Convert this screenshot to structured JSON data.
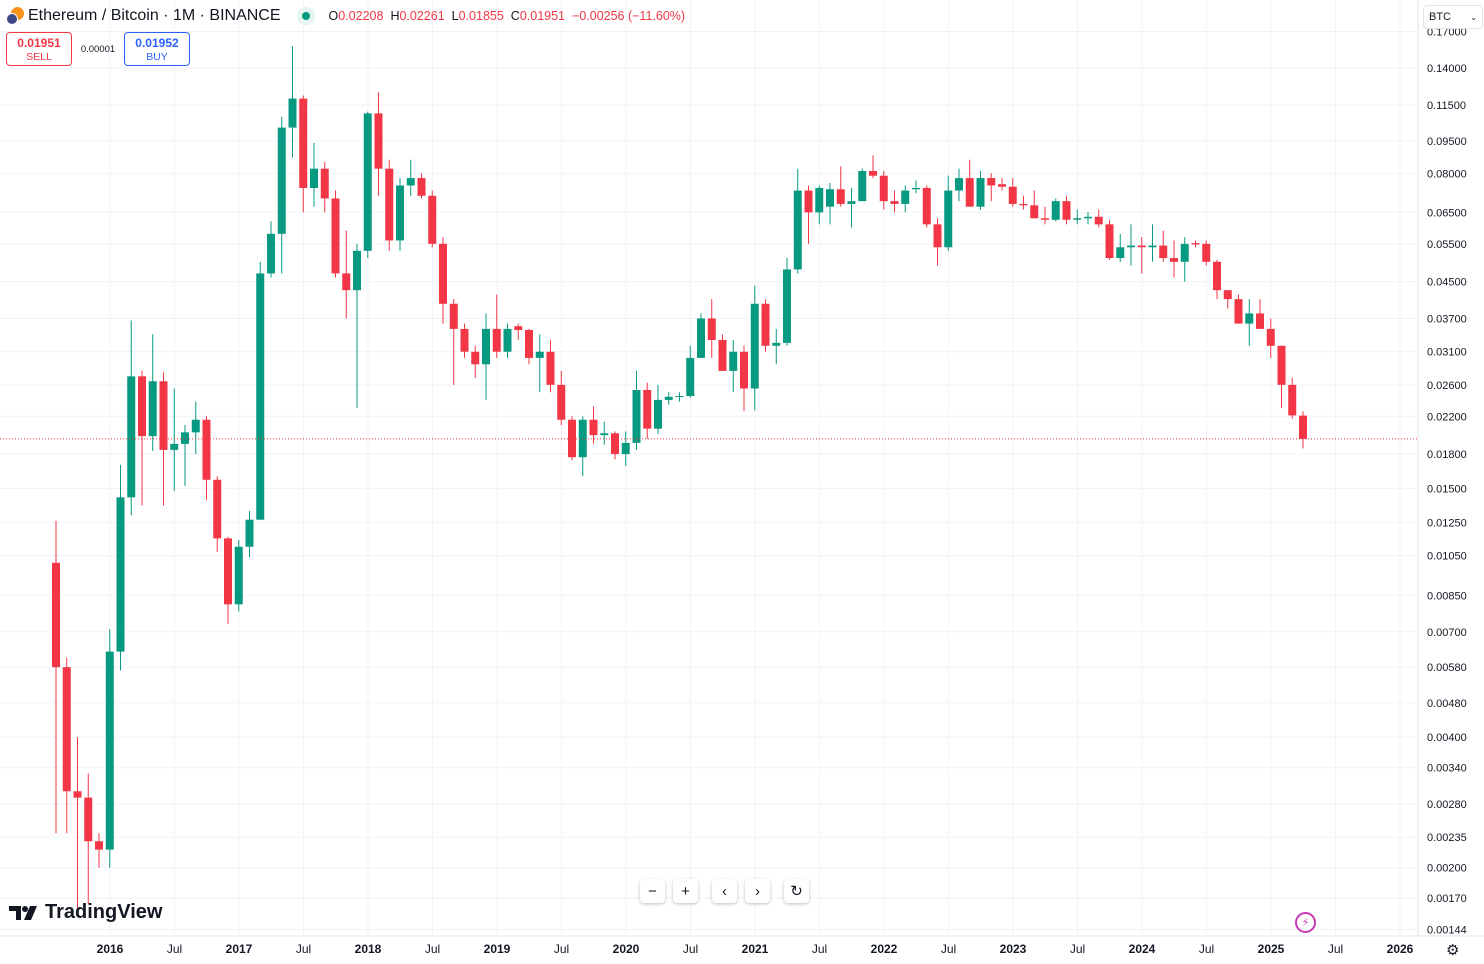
{
  "header": {
    "symbol": "Ethereum / Bitcoin · 1M · BINANCE",
    "o_label": "O",
    "o": "0.02208",
    "h_label": "H",
    "h": "0.02261",
    "l_label": "L",
    "l": "0.01855",
    "c_label": "C",
    "c": "0.01951",
    "change": "−0.00256 (−11.60%)"
  },
  "trade": {
    "sell_price": "0.01951",
    "sell_label": "SELL",
    "spread": "0.00001",
    "buy_price": "0.01952",
    "buy_label": "BUY"
  },
  "currency_select": {
    "value": "BTC"
  },
  "nav": {
    "zoom_out": "−",
    "zoom_in": "+",
    "scroll_left": "‹",
    "scroll_right": "›",
    "reset": "↻"
  },
  "branding": {
    "logo_text": "TradingView"
  },
  "colors": {
    "up": "#089981",
    "down": "#f23645",
    "grid": "#f0f3fa",
    "last_price_line": "#f23645"
  },
  "chart_data": {
    "type": "candlestick",
    "title": "Ethereum / Bitcoin · 1M · BINANCE",
    "scale": "log",
    "ylim": [
      0.00144,
      0.17
    ],
    "last_price": 0.01951,
    "y_ticks": [
      "0.17000",
      "0.14000",
      "0.11500",
      "0.09500",
      "0.08000",
      "0.06500",
      "0.05500",
      "0.04500",
      "0.03700",
      "0.03100",
      "0.02600",
      "0.02200",
      "0.01800",
      "0.01500",
      "0.01250",
      "0.01050",
      "0.00850",
      "0.00700",
      "0.00580",
      "0.00480",
      "0.00400",
      "0.00340",
      "0.00280",
      "0.00235",
      "0.00200",
      "0.00170",
      "0.00144"
    ],
    "x_ticks": [
      {
        "label": "2016",
        "major": true
      },
      {
        "label": "Jul"
      },
      {
        "label": "2017",
        "major": true
      },
      {
        "label": "Jul"
      },
      {
        "label": "2018",
        "major": true
      },
      {
        "label": "Jul"
      },
      {
        "label": "2019",
        "major": true
      },
      {
        "label": "Jul"
      },
      {
        "label": "2020",
        "major": true
      },
      {
        "label": "Jul"
      },
      {
        "label": "2021",
        "major": true
      },
      {
        "label": "Jul"
      },
      {
        "label": "2022",
        "major": true
      },
      {
        "label": "Jul"
      },
      {
        "label": "2023",
        "major": true
      },
      {
        "label": "Jul"
      },
      {
        "label": "2024",
        "major": true
      },
      {
        "label": "Jul"
      },
      {
        "label": "2025",
        "major": true
      },
      {
        "label": "Jul"
      },
      {
        "label": "2026",
        "major": true
      }
    ],
    "start": "2015-08",
    "ohlc": [
      [
        0.0101,
        0.0126,
        0.0024,
        0.0058
      ],
      [
        0.0058,
        0.0061,
        0.0024,
        0.003
      ],
      [
        0.003,
        0.004,
        0.0016,
        0.0029
      ],
      [
        0.0029,
        0.0033,
        0.00165,
        0.0023
      ],
      [
        0.0023,
        0.0024,
        0.002,
        0.0022
      ],
      [
        0.0022,
        0.0071,
        0.002,
        0.0063
      ],
      [
        0.0063,
        0.017,
        0.0057,
        0.0143
      ],
      [
        0.0143,
        0.0366,
        0.013,
        0.0272
      ],
      [
        0.0272,
        0.028,
        0.0137,
        0.0198
      ],
      [
        0.0198,
        0.034,
        0.0183,
        0.0265
      ],
      [
        0.0265,
        0.0278,
        0.0137,
        0.0184
      ],
      [
        0.0184,
        0.0255,
        0.0148,
        0.019
      ],
      [
        0.019,
        0.021,
        0.0152,
        0.0202
      ],
      [
        0.0202,
        0.0238,
        0.018,
        0.0216
      ],
      [
        0.0216,
        0.022,
        0.0141,
        0.0157
      ],
      [
        0.0157,
        0.016,
        0.0107,
        0.0115
      ],
      [
        0.0115,
        0.0116,
        0.0073,
        0.0081
      ],
      [
        0.0081,
        0.0114,
        0.0078,
        0.011
      ],
      [
        0.011,
        0.0133,
        0.0104,
        0.0127
      ],
      [
        0.0127,
        0.05,
        0.013,
        0.047
      ],
      [
        0.047,
        0.062,
        0.046,
        0.058
      ],
      [
        0.058,
        0.108,
        0.047,
        0.102
      ],
      [
        0.102,
        0.157,
        0.087,
        0.119
      ],
      [
        0.119,
        0.121,
        0.065,
        0.074
      ],
      [
        0.074,
        0.094,
        0.067,
        0.082
      ],
      [
        0.082,
        0.085,
        0.065,
        0.07
      ],
      [
        0.07,
        0.073,
        0.046,
        0.047
      ],
      [
        0.047,
        0.059,
        0.037,
        0.043
      ],
      [
        0.043,
        0.055,
        0.023,
        0.053
      ],
      [
        0.053,
        0.111,
        0.051,
        0.11
      ],
      [
        0.11,
        0.123,
        0.071,
        0.082
      ],
      [
        0.082,
        0.086,
        0.053,
        0.056
      ],
      [
        0.056,
        0.078,
        0.053,
        0.075
      ],
      [
        0.075,
        0.086,
        0.071,
        0.078
      ],
      [
        0.078,
        0.08,
        0.07,
        0.071
      ],
      [
        0.071,
        0.073,
        0.054,
        0.055
      ],
      [
        0.055,
        0.057,
        0.036,
        0.04
      ],
      [
        0.04,
        0.041,
        0.026,
        0.035
      ],
      [
        0.035,
        0.036,
        0.03,
        0.031
      ],
      [
        0.031,
        0.032,
        0.027,
        0.029
      ],
      [
        0.029,
        0.038,
        0.024,
        0.035
      ],
      [
        0.035,
        0.042,
        0.03,
        0.031
      ],
      [
        0.031,
        0.036,
        0.03,
        0.035
      ],
      [
        0.0355,
        0.036,
        0.033,
        0.0348
      ],
      [
        0.0348,
        0.035,
        0.029,
        0.03
      ],
      [
        0.03,
        0.034,
        0.025,
        0.031
      ],
      [
        0.031,
        0.033,
        0.025,
        0.026
      ],
      [
        0.026,
        0.028,
        0.021,
        0.0216
      ],
      [
        0.0216,
        0.022,
        0.0174,
        0.0177
      ],
      [
        0.0177,
        0.022,
        0.016,
        0.0216
      ],
      [
        0.0216,
        0.0232,
        0.019,
        0.0199
      ],
      [
        0.0199,
        0.0214,
        0.0189,
        0.0201
      ],
      [
        0.0201,
        0.0203,
        0.0175,
        0.018
      ],
      [
        0.018,
        0.0203,
        0.0169,
        0.0191
      ],
      [
        0.0191,
        0.028,
        0.0184,
        0.0253
      ],
      [
        0.0253,
        0.0263,
        0.0195,
        0.0206
      ],
      [
        0.0206,
        0.026,
        0.02,
        0.024
      ],
      [
        0.024,
        0.025,
        0.0234,
        0.0244
      ],
      [
        0.0244,
        0.025,
        0.0238,
        0.0245
      ],
      [
        0.0245,
        0.032,
        0.0243,
        0.03
      ],
      [
        0.03,
        0.038,
        0.03,
        0.037
      ],
      [
        0.037,
        0.041,
        0.03,
        0.033
      ],
      [
        0.033,
        0.034,
        0.028,
        0.028
      ],
      [
        0.028,
        0.033,
        0.025,
        0.031
      ],
      [
        0.031,
        0.032,
        0.0226,
        0.0255
      ],
      [
        0.0255,
        0.044,
        0.0227,
        0.04
      ],
      [
        0.04,
        0.041,
        0.031,
        0.032
      ],
      [
        0.032,
        0.035,
        0.029,
        0.0325
      ],
      [
        0.0325,
        0.051,
        0.032,
        0.048
      ],
      [
        0.048,
        0.082,
        0.047,
        0.073
      ],
      [
        0.073,
        0.075,
        0.055,
        0.065
      ],
      [
        0.065,
        0.075,
        0.061,
        0.074
      ],
      [
        0.067,
        0.076,
        0.061,
        0.0735
      ],
      [
        0.0735,
        0.083,
        0.067,
        0.068
      ],
      [
        0.068,
        0.074,
        0.06,
        0.069
      ],
      [
        0.069,
        0.082,
        0.069,
        0.081
      ],
      [
        0.081,
        0.088,
        0.078,
        0.079
      ],
      [
        0.079,
        0.081,
        0.066,
        0.069
      ],
      [
        0.069,
        0.073,
        0.065,
        0.068
      ],
      [
        0.068,
        0.075,
        0.065,
        0.073
      ],
      [
        0.0735,
        0.077,
        0.072,
        0.074
      ],
      [
        0.074,
        0.075,
        0.06,
        0.061
      ],
      [
        0.061,
        0.063,
        0.049,
        0.054
      ],
      [
        0.054,
        0.079,
        0.053,
        0.073
      ],
      [
        0.073,
        0.082,
        0.069,
        0.078
      ],
      [
        0.078,
        0.086,
        0.067,
        0.067
      ],
      [
        0.067,
        0.081,
        0.066,
        0.078
      ],
      [
        0.078,
        0.08,
        0.069,
        0.075
      ],
      [
        0.0755,
        0.078,
        0.073,
        0.0745
      ],
      [
        0.0745,
        0.078,
        0.067,
        0.068
      ],
      [
        0.068,
        0.071,
        0.066,
        0.0675
      ],
      [
        0.0675,
        0.073,
        0.063,
        0.063
      ],
      [
        0.063,
        0.067,
        0.061,
        0.0625
      ],
      [
        0.0625,
        0.07,
        0.062,
        0.069
      ],
      [
        0.069,
        0.071,
        0.061,
        0.0625
      ],
      [
        0.0625,
        0.066,
        0.061,
        0.063
      ],
      [
        0.063,
        0.065,
        0.061,
        0.0635
      ],
      [
        0.0635,
        0.066,
        0.06,
        0.061
      ],
      [
        0.061,
        0.0625,
        0.0505,
        0.051
      ],
      [
        0.051,
        0.058,
        0.05,
        0.054
      ],
      [
        0.054,
        0.061,
        0.049,
        0.0545
      ],
      [
        0.0545,
        0.057,
        0.047,
        0.054
      ],
      [
        0.054,
        0.061,
        0.05,
        0.0545
      ],
      [
        0.0545,
        0.059,
        0.05,
        0.051
      ],
      [
        0.051,
        0.056,
        0.046,
        0.05
      ],
      [
        0.05,
        0.057,
        0.045,
        0.055
      ],
      [
        0.0552,
        0.056,
        0.054,
        0.0548
      ],
      [
        0.055,
        0.056,
        0.049,
        0.05
      ],
      [
        0.05,
        0.0505,
        0.041,
        0.043
      ],
      [
        0.043,
        0.043,
        0.039,
        0.041
      ],
      [
        0.041,
        0.042,
        0.036,
        0.036
      ],
      [
        0.036,
        0.041,
        0.032,
        0.038
      ],
      [
        0.038,
        0.041,
        0.035,
        0.035
      ],
      [
        0.035,
        0.037,
        0.03,
        0.032
      ],
      [
        0.032,
        0.032,
        0.023,
        0.026
      ],
      [
        0.026,
        0.027,
        0.0217,
        0.0221
      ],
      [
        0.02208,
        0.02261,
        0.01855,
        0.01951
      ]
    ]
  }
}
